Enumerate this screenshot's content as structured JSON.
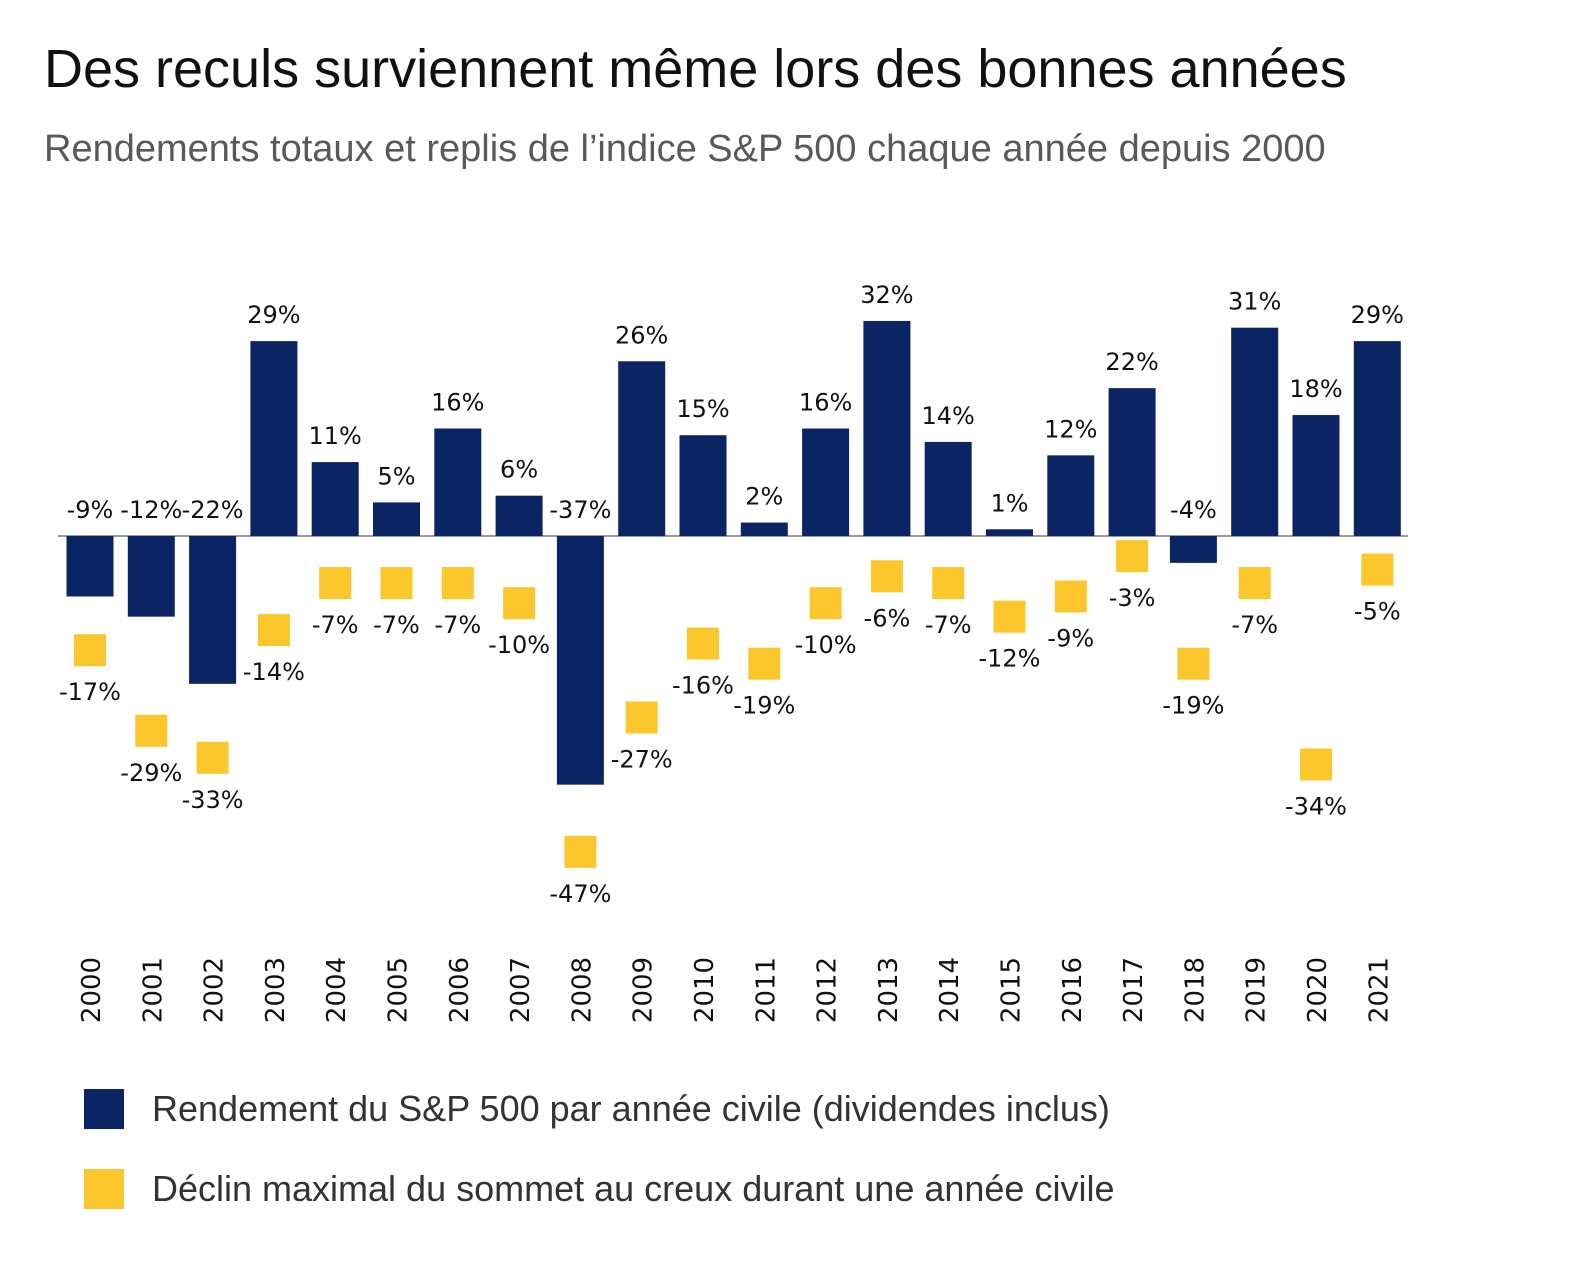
{
  "title": "Des reculs surviennent même lors des bonnes années",
  "subtitle": "Rendements totaux et replis de l’indice S&P 500  chaque année depuis 2000",
  "colors": {
    "returns": "#0b2463",
    "drawdown": "#fcc72c",
    "axis": "#999999"
  },
  "legend": [
    {
      "key": "returns",
      "label": "Rendement du S&P 500 par année civile (dividendes inclus)"
    },
    {
      "key": "drawdown",
      "label": "Déclin maximal du sommet au creux durant une année civile"
    }
  ],
  "chart_data": {
    "type": "bar",
    "title": "Des reculs surviennent même lors des bonnes années",
    "subtitle": "Rendements totaux et replis de l’indice S&P 500  chaque année depuis 2000",
    "categories": [
      "2000",
      "2001",
      "2002",
      "2003",
      "2004",
      "2005",
      "2006",
      "2007",
      "2008",
      "2009",
      "2010",
      "2011",
      "2012",
      "2013",
      "2014",
      "2015",
      "2016",
      "2017",
      "2018",
      "2019",
      "2020",
      "2021"
    ],
    "unit": "%",
    "ylim": [
      -47,
      32
    ],
    "grid": false,
    "legend_position": "bottom",
    "series": [
      {
        "name": "Rendement du S&P 500 par année civile (dividendes inclus)",
        "mark": "bar",
        "values": [
          -9,
          -12,
          -22,
          29,
          11,
          5,
          16,
          6,
          -37,
          26,
          15,
          2,
          16,
          32,
          14,
          1,
          12,
          22,
          -4,
          31,
          18,
          29
        ]
      },
      {
        "name": "Déclin maximal du sommet au creux durant une année civile",
        "mark": "square",
        "values": [
          -17,
          -29,
          -33,
          -14,
          -7,
          -7,
          -7,
          -10,
          -47,
          -27,
          -16,
          -19,
          -10,
          -6,
          -7,
          -12,
          -9,
          -3,
          -19,
          -7,
          -34,
          -5
        ]
      }
    ]
  }
}
